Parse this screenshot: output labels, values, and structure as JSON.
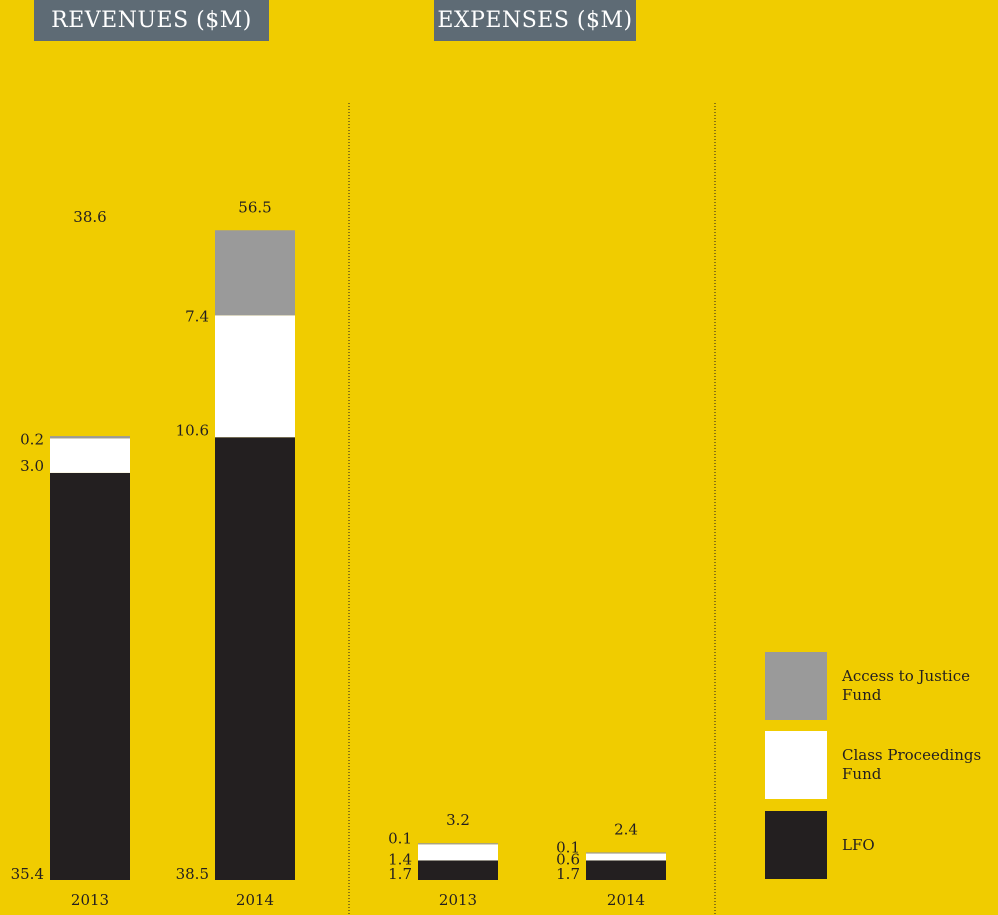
{
  "panels": {
    "revenues_title": "REVENUES ($M)",
    "expenses_title": "EXPENSES ($M)"
  },
  "legend": [
    {
      "label": "Access to Justice Fund",
      "color": "#9a9a9a"
    },
    {
      "label": "Class Proceedings Fund",
      "color": "#ffffff"
    },
    {
      "label": "LFO",
      "color": "#231f20"
    }
  ],
  "colors": {
    "background": "#f0cc00",
    "title_bg": "#5e6b75",
    "lfo": "#231f20",
    "class_proceedings": "#ffffff",
    "access_justice": "#9a9a9a"
  },
  "chart_data": [
    {
      "type": "bar",
      "stacked": true,
      "title": "REVENUES ($M)",
      "categories": [
        "2013",
        "2014"
      ],
      "series": [
        {
          "name": "LFO",
          "values": [
            35.4,
            38.5
          ]
        },
        {
          "name": "Class Proceedings Fund",
          "values": [
            3.0,
            10.6
          ]
        },
        {
          "name": "Access to Justice Fund",
          "values": [
            0.2,
            7.4
          ]
        }
      ],
      "totals": [
        "38.6",
        "56.5"
      ],
      "segment_labels": [
        [
          "35.4",
          "3.0",
          "0.2"
        ],
        [
          "38.5",
          "10.6",
          "7.4"
        ]
      ]
    },
    {
      "type": "bar",
      "stacked": true,
      "title": "EXPENSES ($M)",
      "categories": [
        "2013",
        "2014"
      ],
      "series": [
        {
          "name": "LFO",
          "values": [
            1.7,
            1.7
          ]
        },
        {
          "name": "Class Proceedings Fund",
          "values": [
            1.4,
            0.6
          ]
        },
        {
          "name": "Access to Justice Fund",
          "values": [
            0.1,
            0.1
          ]
        }
      ],
      "totals": [
        "3.2",
        "2.4"
      ],
      "segment_labels": [
        [
          "1.7",
          "1.4",
          "0.1"
        ],
        [
          "1.7",
          "0.6",
          "0.1"
        ]
      ]
    }
  ]
}
